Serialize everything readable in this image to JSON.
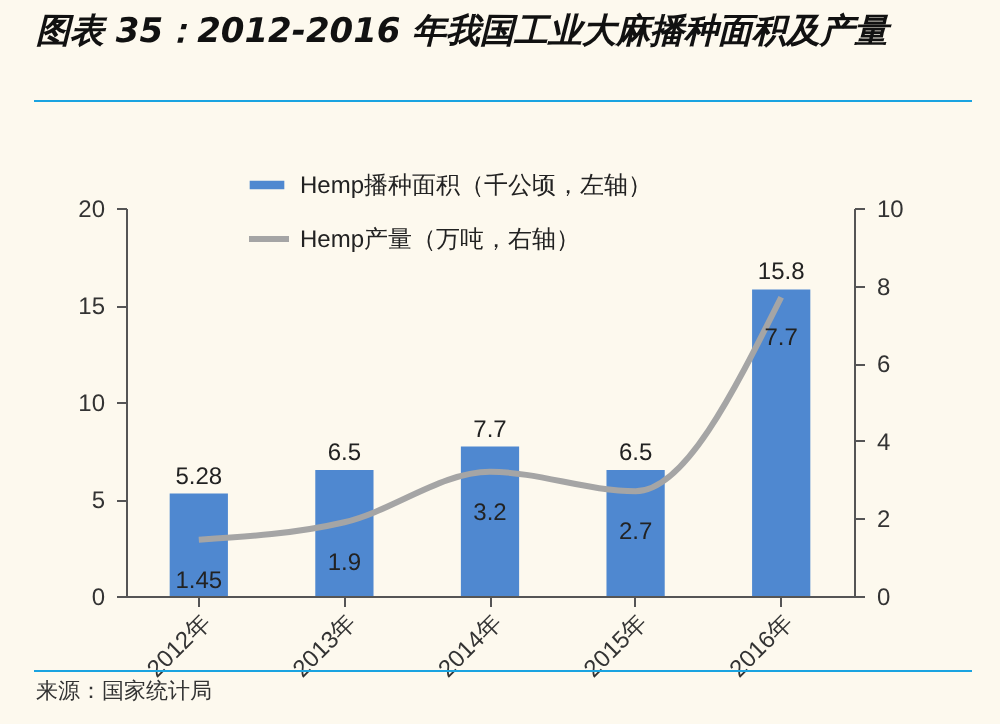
{
  "chart_data": {
    "type": "bar",
    "title": "图表 35：2012-2016 年我国工业大麻播种面积及产量",
    "categories": [
      "2012年",
      "2013年",
      "2014年",
      "2015年",
      "2016年"
    ],
    "series": [
      {
        "name": "Hemp播种面积（千公顷，左轴）",
        "color": "#4f88d0",
        "values": [
          5.28,
          6.5,
          7.7,
          6.5,
          15.8
        ]
      },
      {
        "name": "Hemp产量（万吨，右轴）",
        "type": "line",
        "axis": "y2",
        "color": "#a5a5a5",
        "values": [
          1.45,
          1.9,
          3.2,
          2.7,
          7.7
        ]
      }
    ],
    "ylim": [
      0,
      20
    ],
    "yticks": [
      0,
      5,
      10,
      15,
      20
    ],
    "y2lim": [
      0,
      10
    ],
    "y2ticks": [
      0,
      2,
      4,
      6,
      8,
      10
    ],
    "data_labels": true,
    "legend": "top",
    "grid": false,
    "marker": "none",
    "annotations": [
      "来源：国家统计局"
    ]
  }
}
